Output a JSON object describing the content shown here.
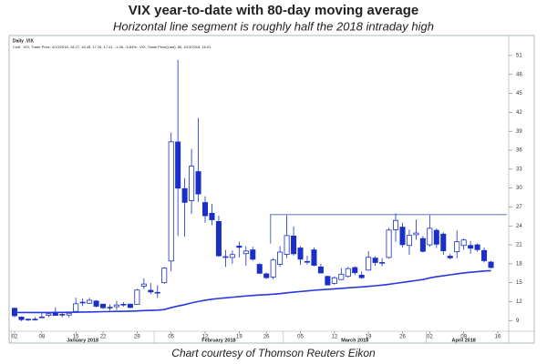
{
  "chart_data": {
    "type": "candlestick",
    "title": "VIX year-to-date with 80-day moving average",
    "subtitle": "Horizontal line segment is roughly half the 2018 intraday high",
    "source": "Chart courtesy of Thomson Reuters Eikon",
    "panel_title": "Daily .VIX",
    "legend_text": "Cndl, .VIX, Trade Price, 4/13/2018, 18.27, 18.45, 17.26, 17.41, -1.08, -5.84%; .VIX, Trade Price(Last), 80, 4/13/2018, 16.91",
    "months": [
      "January 2018",
      "February 2018",
      "March 2018",
      "April 2018"
    ],
    "categories": [
      "02",
      null,
      null,
      null,
      "08",
      null,
      null,
      null,
      null,
      "15",
      null,
      null,
      null,
      "22",
      null,
      null,
      null,
      null,
      "29",
      null,
      null,
      null,
      null,
      "05",
      null,
      null,
      null,
      null,
      "12",
      null,
      null,
      null,
      null,
      "19",
      null,
      null,
      null,
      "26",
      null,
      null,
      null,
      null,
      "05",
      null,
      null,
      null,
      null,
      "12",
      null,
      null,
      null,
      null,
      "19",
      null,
      null,
      null,
      null,
      "26",
      null,
      null,
      null,
      "02",
      null,
      null,
      null,
      null,
      "09",
      null,
      null,
      null,
      null,
      "16"
    ],
    "color": "#1a2fc8",
    "open": [
      10.95,
      9.56,
      9.18,
      9.21,
      9.57,
      9.85,
      10.32,
      9.98,
      9.88,
      10.45,
      11.85,
      11.75,
      12.1,
      11.6,
      11.0,
      11.2,
      11.5,
      11.6,
      11.55,
      14.45,
      13.8,
      13.4,
      15.0,
      18.44,
      37.3,
      29.9,
      28.0,
      32.6,
      27.7,
      26.0,
      24.7,
      19.0,
      19.0,
      20.8,
      19.6,
      20.2,
      17.9,
      16.4,
      15.9,
      17.9,
      19.5,
      22.4,
      20.5,
      18.3,
      20.2,
      17.5,
      16.0,
      14.9,
      15.5,
      16.0,
      17.4,
      16.2,
      17.0,
      18.9,
      18.2,
      19.0,
      23.4,
      23.8,
      20.9,
      22.6,
      22.0,
      21.0,
      23.3,
      22.7,
      19.2,
      19.9,
      20.9,
      20.9,
      21.0,
      20.1,
      18.27,
      null
    ],
    "high": [
      11.1,
      9.65,
      9.31,
      9.54,
      10.25,
      10.39,
      11.1,
      10.35,
      10.2,
      12.62,
      12.5,
      12.6,
      12.25,
      11.65,
      11.57,
      12.15,
      11.9,
      11.7,
      14.0,
      15.7,
      14.95,
      14.6,
      17.5,
      38.8,
      50.3,
      31.6,
      36.2,
      41.1,
      28.7,
      27.5,
      25.6,
      20.2,
      20.1,
      21.5,
      20.8,
      20.7,
      18.1,
      16.6,
      18.9,
      20.8,
      25.7,
      23.9,
      20.8,
      19.3,
      20.6,
      18.0,
      16.1,
      16.0,
      17.3,
      17.5,
      17.6,
      16.8,
      20.0,
      19.2,
      18.9,
      23.7,
      26.0,
      24.5,
      23.4,
      25.0,
      22.4,
      25.7,
      23.6,
      23.0,
      19.6,
      23.3,
      22.0,
      21.6,
      21.2,
      20.6,
      18.45,
      null
    ],
    "low": [
      9.52,
      8.92,
      8.92,
      9.0,
      9.45,
      9.56,
      9.82,
      9.52,
      9.55,
      10.3,
      11.3,
      11.65,
      11.1,
      10.85,
      10.6,
      10.7,
      11.2,
      10.95,
      11.5,
      14.0,
      13.2,
      12.6,
      14.8,
      16.8,
      22.42,
      22.3,
      25.9,
      27.8,
      24.5,
      24.1,
      19.1,
      17.5,
      18.0,
      19.0,
      17.7,
      18.5,
      16.4,
      15.6,
      15.5,
      17.5,
      18.9,
      19.3,
      17.8,
      17.9,
      17.6,
      16.5,
      14.6,
      14.7,
      15.4,
      15.8,
      16.2,
      15.6,
      16.9,
      17.7,
      17.6,
      18.8,
      21.5,
      20.6,
      19.4,
      21.8,
      19.8,
      20.7,
      20.5,
      19.4,
      18.7,
      18.9,
      20.2,
      19.6,
      19.9,
      18.2,
      17.26,
      null
    ],
    "close": [
      9.77,
      9.15,
      9.22,
      9.22,
      9.52,
      10.08,
      9.82,
      9.88,
      10.16,
      11.66,
      11.91,
      12.22,
      11.27,
      11.03,
      11.1,
      11.47,
      11.58,
      11.08,
      13.84,
      14.79,
      13.54,
      13.47,
      17.31,
      37.32,
      29.98,
      27.73,
      33.46,
      29.06,
      25.61,
      24.97,
      19.26,
      19.13,
      19.46,
      20.6,
      20.02,
      18.72,
      16.49,
      15.8,
      18.59,
      19.85,
      22.47,
      19.59,
      18.73,
      18.36,
      17.76,
      16.54,
      14.64,
      15.78,
      16.35,
      17.23,
      16.59,
      15.8,
      19.02,
      18.2,
      18.2,
      23.34,
      24.87,
      21.03,
      22.5,
      22.87,
      19.97,
      23.62,
      21.1,
      20.06,
      18.94,
      21.49,
      21.77,
      20.47,
      20.24,
      18.49,
      17.41,
      null
    ],
    "moving_average": {
      "color": "#2838e0",
      "values": [
        10.3,
        10.28,
        10.27,
        10.27,
        10.27,
        10.28,
        10.29,
        10.3,
        10.31,
        10.33,
        10.35,
        10.37,
        10.39,
        10.41,
        10.43,
        10.45,
        10.47,
        10.49,
        10.53,
        10.58,
        10.62,
        10.66,
        10.75,
        11.05,
        11.3,
        11.52,
        11.8,
        12.03,
        12.22,
        12.38,
        12.5,
        12.6,
        12.7,
        12.8,
        12.9,
        12.98,
        13.05,
        13.1,
        13.18,
        13.27,
        13.4,
        13.5,
        13.6,
        13.7,
        13.8,
        13.88,
        13.95,
        14.02,
        14.1,
        14.18,
        14.26,
        14.33,
        14.42,
        14.52,
        14.62,
        14.75,
        14.9,
        15.05,
        15.2,
        15.35,
        15.5,
        15.75,
        15.95,
        16.1,
        16.25,
        16.4,
        16.55,
        16.65,
        16.75,
        16.85,
        16.91,
        null
      ]
    },
    "level_line": {
      "value": 25.8,
      "from_value": 21.2,
      "color": "#8090d4"
    },
    "ylim": [
      7.6,
      53.3
    ],
    "yticks": [
      9,
      12,
      15,
      18,
      21,
      24,
      27,
      30,
      33,
      36,
      39,
      42,
      45,
      48,
      51
    ],
    "grid": false
  }
}
